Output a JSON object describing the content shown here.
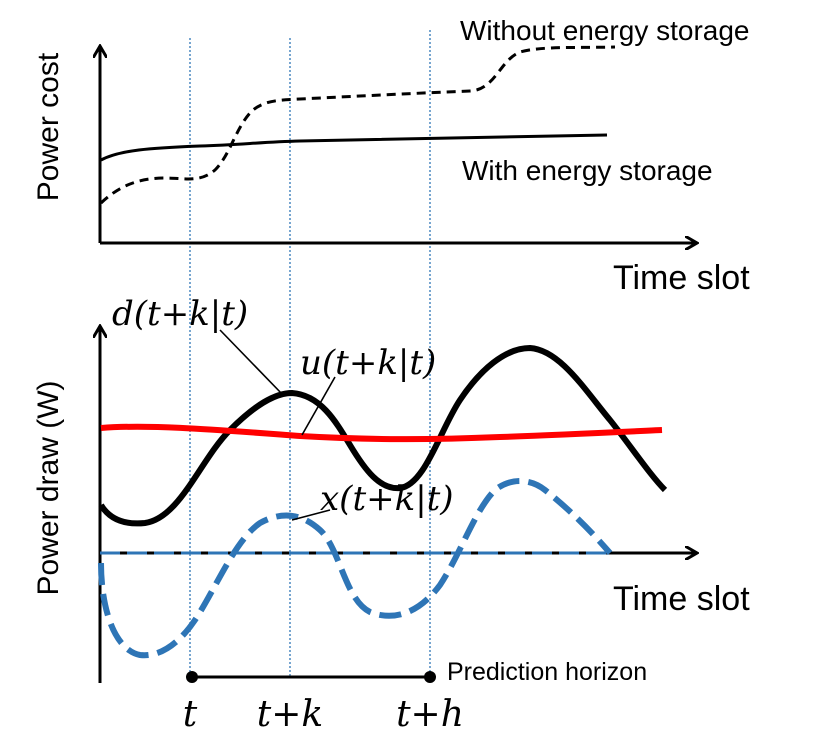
{
  "top_panel": {
    "ylabel": "Power cost",
    "xlabel": "Time slot",
    "curve_without_label": "Without energy storage",
    "curve_with_label": "With energy storage"
  },
  "bottom_panel": {
    "ylabel": "Power draw (W)",
    "xlabel": "Time slot",
    "label_d": "d(t+k|t)",
    "label_u": "u(t+k|t)",
    "label_x": "x(t+k|t)",
    "horizon_label": "Prediction horizon",
    "tick_t": "t",
    "tick_tk": "t+k",
    "tick_th": "t+h"
  },
  "colors": {
    "axis": "#000000",
    "demand_curve": "#000000",
    "supply_curve": "#ff0000",
    "storage_curve": "#2e75b6",
    "guide_line": "#2e75b6"
  }
}
